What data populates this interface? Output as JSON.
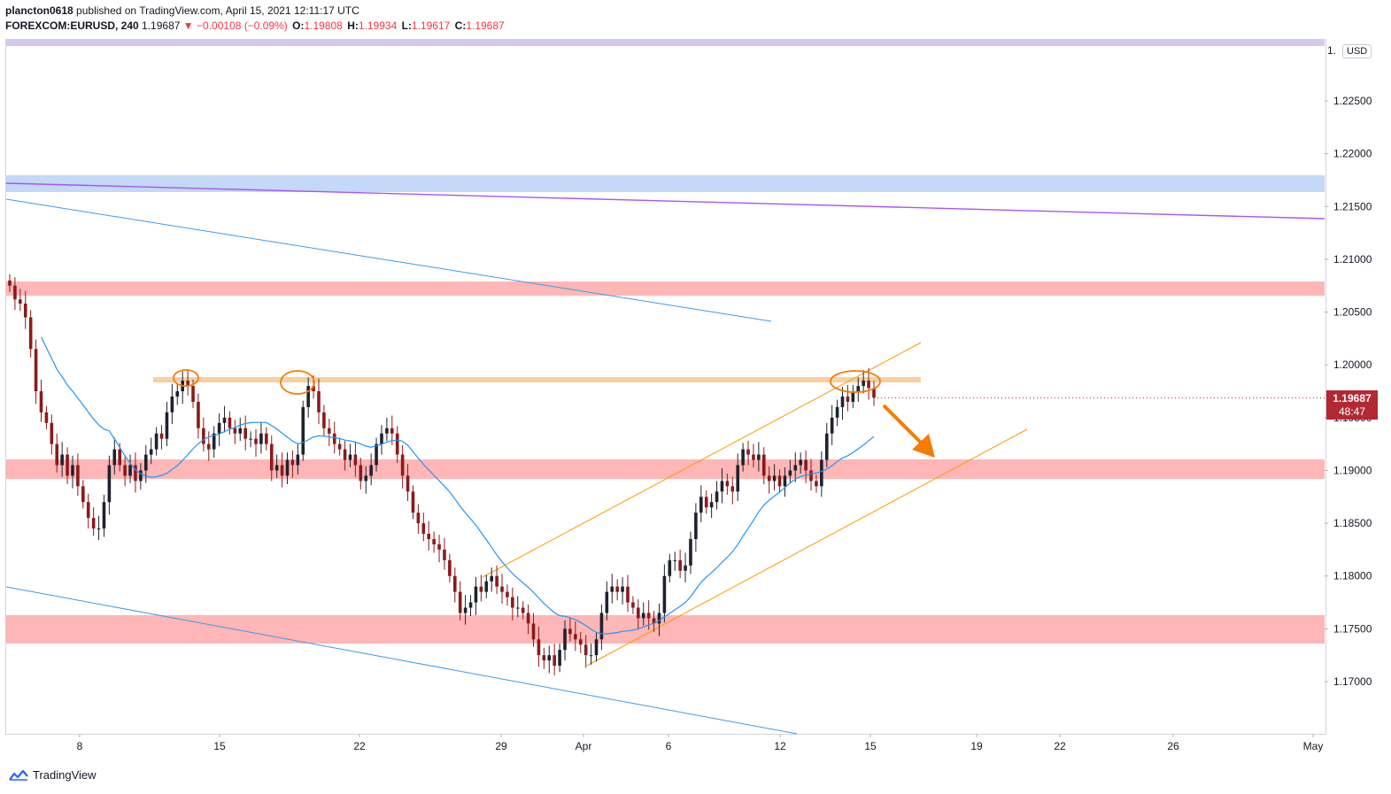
{
  "header": {
    "publisher": "plancton0618",
    "published_text": "published on TradingView.com, April 15, 2021 12:11:17 UTC",
    "symbol": "FOREXCOM:EURUSD, 240",
    "last": "1.19687",
    "change": "−0.00108 (−0.09%)",
    "o_label": "O:",
    "o_value": "1.19808",
    "h_label": "H:",
    "h_value": "1.19934",
    "l_label": "L:",
    "l_value": "1.19617",
    "c_label": "C:",
    "c_value": "1.19687",
    "change_direction_icon": "triangle-down-icon"
  },
  "price_axis": {
    "currency": "USD",
    "top_partial_label": "1.",
    "ticks": [
      "1.22500",
      "1.22000",
      "1.21500",
      "1.21000",
      "1.20500",
      "1.20000",
      "1.19500",
      "1.19000",
      "1.18500",
      "1.18000",
      "1.17500",
      "1.17000"
    ],
    "tick_values": [
      1.225,
      1.22,
      1.215,
      1.21,
      1.205,
      1.2,
      1.195,
      1.19,
      1.185,
      1.18,
      1.175,
      1.17
    ],
    "last_price_label": "1.19687",
    "countdown_label": "48:47",
    "last_price": 1.19687
  },
  "time_axis": {
    "labels": [
      "8",
      "15",
      "22",
      "29",
      "Apr",
      "6",
      "12",
      "15",
      "19",
      "22",
      "26",
      "May"
    ]
  },
  "footer": {
    "brand": "TradingView",
    "logo_icon": "tradingview-logo-icon"
  },
  "colors": {
    "bull": "#1e222d",
    "bear": "#8b1a1a",
    "ma_line": "#2196f3",
    "channel": "#ff9800",
    "resistance_zone": "#ff9e9e",
    "support_highlight": "#f7c48f",
    "purple_line": "#a855f7",
    "blue_zone": "#b3cdf5",
    "last_price_bg": "#b22833"
  },
  "chart_data": {
    "type": "candlestick",
    "symbol": "FOREXCOM:EURUSD",
    "timeframe": "240",
    "y_range": [
      1.166,
      1.232
    ],
    "candles_close": [
      1.2075,
      1.2062,
      1.2058,
      1.2045,
      1.2015,
      1.1975,
      1.1955,
      1.1945,
      1.1925,
      1.1905,
      1.1915,
      1.1895,
      1.1905,
      1.1885,
      1.187,
      1.1855,
      1.1845,
      1.1845,
      1.187,
      1.1905,
      1.192,
      1.1905,
      1.1895,
      1.1905,
      1.189,
      1.19,
      1.1915,
      1.192,
      1.1935,
      1.193,
      1.1955,
      1.197,
      1.1975,
      1.1985,
      1.198,
      1.1965,
      1.194,
      1.1925,
      1.192,
      1.1935,
      1.1945,
      1.195,
      1.194,
      1.1935,
      1.194,
      1.193,
      1.193,
      1.1925,
      1.1935,
      1.1925,
      1.19,
      1.1905,
      1.1895,
      1.191,
      1.1905,
      1.1915,
      1.196,
      1.198,
      1.1975,
      1.1955,
      1.194,
      1.1935,
      1.1925,
      1.192,
      1.191,
      1.1915,
      1.1905,
      1.189,
      1.1895,
      1.1905,
      1.1925,
      1.1935,
      1.194,
      1.1935,
      1.1915,
      1.1895,
      1.188,
      1.186,
      1.185,
      1.184,
      1.1835,
      1.183,
      1.1825,
      1.1815,
      1.18,
      1.1785,
      1.1765,
      1.177,
      1.1775,
      1.179,
      1.1785,
      1.1795,
      1.18,
      1.179,
      1.1785,
      1.178,
      1.177,
      1.177,
      1.1765,
      1.1755,
      1.174,
      1.1725,
      1.172,
      1.1725,
      1.1715,
      1.173,
      1.175,
      1.1745,
      1.174,
      1.1735,
      1.1725,
      1.1725,
      1.174,
      1.1765,
      1.1785,
      1.179,
      1.1785,
      1.179,
      1.1775,
      1.177,
      1.176,
      1.1765,
      1.176,
      1.1755,
      1.1765,
      1.18,
      1.1815,
      1.1815,
      1.1805,
      1.181,
      1.1835,
      1.186,
      1.1875,
      1.1865,
      1.187,
      1.188,
      1.189,
      1.1885,
      1.188,
      1.1905,
      1.192,
      1.1915,
      1.191,
      1.1915,
      1.1895,
      1.189,
      1.1895,
      1.1885,
      1.1895,
      1.19,
      1.1905,
      1.191,
      1.19,
      1.189,
      1.1885,
      1.191,
      1.1935,
      1.195,
      1.196,
      1.197,
      1.1965,
      1.1975,
      1.198,
      1.1985,
      1.1978,
      1.1969
    ]
  }
}
